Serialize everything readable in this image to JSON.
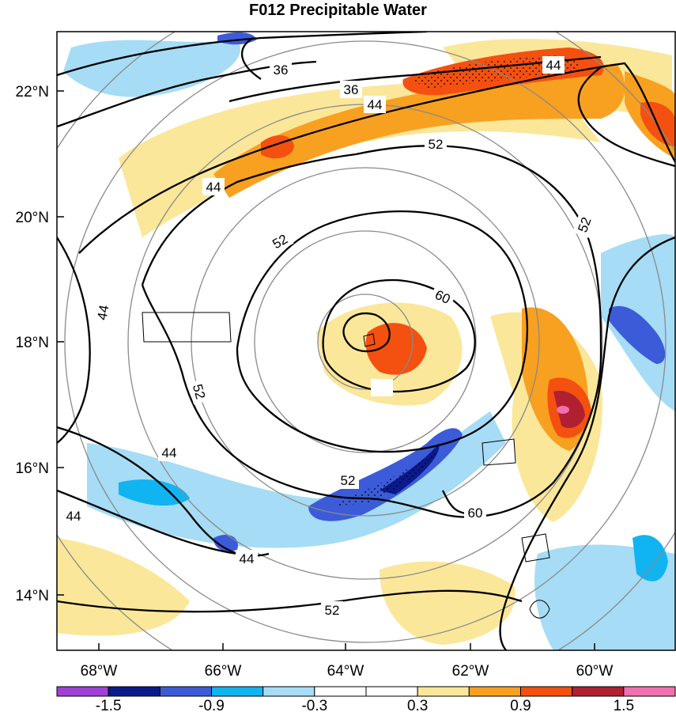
{
  "title": "F012 Precipitable Water",
  "lon_labels": [
    "68°W",
    "66°W",
    "64°W",
    "62°W",
    "60°W"
  ],
  "lat_labels": [
    "22°N",
    "20°N",
    "18°N",
    "16°N",
    "14°N"
  ],
  "contour_labels": [
    "36",
    "36",
    "44",
    "44",
    "44",
    "44",
    "44",
    "44",
    "44",
    "52",
    "52",
    "52",
    "52",
    "52",
    "52",
    "60",
    "60"
  ],
  "colorbar": {
    "colors": [
      "#a040d8",
      "#0a1a8c",
      "#3c5bd8",
      "#10b4f0",
      "#a6dcf5",
      "#ffffff",
      "#ffffff",
      "#fbe79a",
      "#f8a020",
      "#f45010",
      "#b02030",
      "#f070b0"
    ],
    "labels": [
      "-1.5",
      "-0.9",
      "-0.3",
      "0.3",
      "0.9",
      "1.5"
    ]
  },
  "map_data": {
    "lon_range": [
      -69,
      -59
    ],
    "lat_range": [
      13,
      23
    ],
    "storm_center": {
      "lon": -63.5,
      "lat": 18.2
    }
  }
}
